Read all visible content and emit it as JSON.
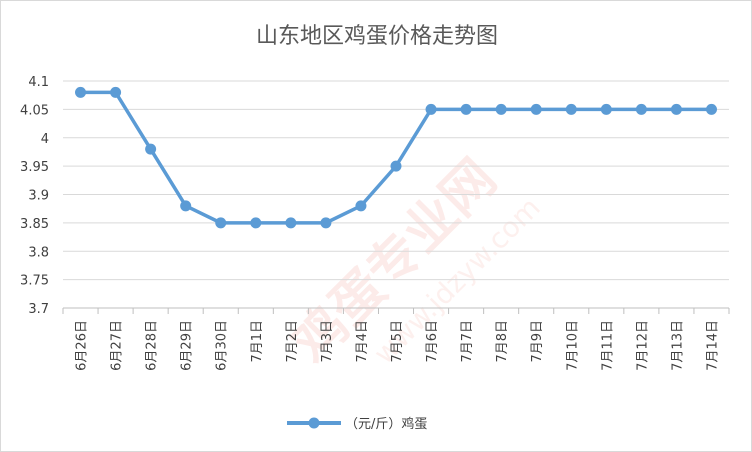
{
  "chart_data": {
    "type": "line",
    "title": "山东地区鸡蛋价格走势图",
    "xlabel": "",
    "ylabel": "",
    "categories": [
      "6月26日",
      "6月27日",
      "6月28日",
      "6月29日",
      "6月30日",
      "7月1日",
      "7月2日",
      "7月3日",
      "7月4日",
      "7月5日",
      "7月6日",
      "7月7日",
      "7月8日",
      "7月9日",
      "7月10日",
      "7月11日",
      "7月12日",
      "7月13日",
      "7月14日"
    ],
    "series": [
      {
        "name": "（元/斤）鸡蛋",
        "values": [
          4.08,
          4.08,
          3.98,
          3.88,
          3.85,
          3.85,
          3.85,
          3.85,
          3.88,
          3.95,
          4.05,
          4.05,
          4.05,
          4.05,
          4.05,
          4.05,
          4.05,
          4.05,
          4.05
        ],
        "color": "#5b9bd5"
      }
    ],
    "ylim": [
      3.7,
      4.1
    ],
    "yticks": [
      "3.7",
      "3.75",
      "3.8",
      "3.85",
      "3.9",
      "3.95",
      "4",
      "4.05",
      "4.1"
    ],
    "grid": true,
    "legend": "bottom"
  },
  "colors": {
    "gridline": "#d9d9d9",
    "axis": "#bfbfbf",
    "watermark": "#e03a2a"
  }
}
